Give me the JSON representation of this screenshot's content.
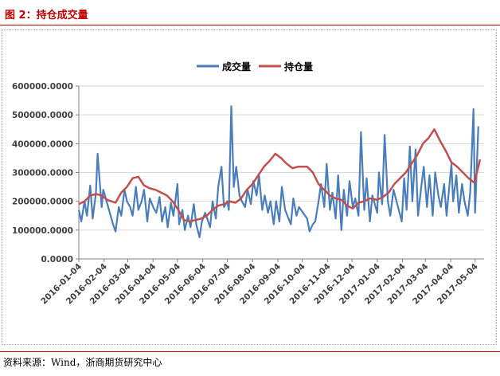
{
  "figure": {
    "title": "图 2：持仓成交量",
    "source": "资料来源：Wind，浙商期货研究中心"
  },
  "chart_data": {
    "type": "line",
    "x_tick_labels": [
      "2016-01-04",
      "2016-02-04",
      "2016-03-04",
      "2016-04-04",
      "2016-05-04",
      "2016-06-04",
      "2016-07-04",
      "2016-08-04",
      "2016-09-04",
      "2016-10-04",
      "2016-11-04",
      "2016-12-04",
      "2017-01-04",
      "2017-02-04",
      "2017-03-04",
      "2017-04-04",
      "2017-05-04"
    ],
    "y_tick_labels": [
      "0.0000",
      "100000.0000",
      "200000.0000",
      "300000.0000",
      "400000.0000",
      "500000.0000",
      "600000.0000"
    ],
    "ylim": [
      0,
      600000
    ],
    "xlim": [
      "2016-01-04",
      "2017-05-15"
    ],
    "grid": true,
    "legend_position": "top-center",
    "series": [
      {
        "name": "成交量",
        "color": "#4a7ebb",
        "points": [
          [
            "2016-01-04",
            170000
          ],
          [
            "2016-01-07",
            130000
          ],
          [
            "2016-01-11",
            200000
          ],
          [
            "2016-01-14",
            150000
          ],
          [
            "2016-01-18",
            255000
          ],
          [
            "2016-01-21",
            140000
          ],
          [
            "2016-01-25",
            230000
          ],
          [
            "2016-01-27",
            365000
          ],
          [
            "2016-02-01",
            180000
          ],
          [
            "2016-02-03",
            240000
          ],
          [
            "2016-02-15",
            120000
          ],
          [
            "2016-02-18",
            95000
          ],
          [
            "2016-02-22",
            180000
          ],
          [
            "2016-02-25",
            150000
          ],
          [
            "2016-02-29",
            240000
          ],
          [
            "2016-03-03",
            200000
          ],
          [
            "2016-03-07",
            180000
          ],
          [
            "2016-03-10",
            150000
          ],
          [
            "2016-03-14",
            250000
          ],
          [
            "2016-03-17",
            170000
          ],
          [
            "2016-03-21",
            200000
          ],
          [
            "2016-03-24",
            240000
          ],
          [
            "2016-03-28",
            130000
          ],
          [
            "2016-03-31",
            210000
          ],
          [
            "2016-04-05",
            175000
          ],
          [
            "2016-04-08",
            160000
          ],
          [
            "2016-04-12",
            215000
          ],
          [
            "2016-04-15",
            130000
          ],
          [
            "2016-04-19",
            180000
          ],
          [
            "2016-04-22",
            110000
          ],
          [
            "2016-04-26",
            195000
          ],
          [
            "2016-04-29",
            150000
          ],
          [
            "2016-05-04",
            260000
          ],
          [
            "2016-05-06",
            120000
          ],
          [
            "2016-05-10",
            170000
          ],
          [
            "2016-05-13",
            100000
          ],
          [
            "2016-05-17",
            150000
          ],
          [
            "2016-05-20",
            110000
          ],
          [
            "2016-05-24",
            190000
          ],
          [
            "2016-05-27",
            120000
          ],
          [
            "2016-05-31",
            75000
          ],
          [
            "2016-06-03",
            130000
          ],
          [
            "2016-06-07",
            160000
          ],
          [
            "2016-06-13",
            110000
          ],
          [
            "2016-06-16",
            200000
          ],
          [
            "2016-06-20",
            140000
          ],
          [
            "2016-06-23",
            250000
          ],
          [
            "2016-06-27",
            320000
          ],
          [
            "2016-06-30",
            180000
          ],
          [
            "2016-07-04",
            200000
          ],
          [
            "2016-07-06",
            170000
          ],
          [
            "2016-07-09",
            530000
          ],
          [
            "2016-07-12",
            250000
          ],
          [
            "2016-07-15",
            320000
          ],
          [
            "2016-07-19",
            220000
          ],
          [
            "2016-07-22",
            200000
          ],
          [
            "2016-07-26",
            180000
          ],
          [
            "2016-07-29",
            240000
          ],
          [
            "2016-08-02",
            190000
          ],
          [
            "2016-08-05",
            270000
          ],
          [
            "2016-08-09",
            220000
          ],
          [
            "2016-08-12",
            290000
          ],
          [
            "2016-08-16",
            170000
          ],
          [
            "2016-08-19",
            220000
          ],
          [
            "2016-08-23",
            160000
          ],
          [
            "2016-08-26",
            200000
          ],
          [
            "2016-08-30",
            120000
          ],
          [
            "2016-09-02",
            200000
          ],
          [
            "2016-09-06",
            130000
          ],
          [
            "2016-09-09",
            250000
          ],
          [
            "2016-09-13",
            170000
          ],
          [
            "2016-09-20",
            120000
          ],
          [
            "2016-09-23",
            210000
          ],
          [
            "2016-09-27",
            150000
          ],
          [
            "2016-09-30",
            180000
          ],
          [
            "2016-10-10",
            140000
          ],
          [
            "2016-10-13",
            95000
          ],
          [
            "2016-10-17",
            120000
          ],
          [
            "2016-10-20",
            130000
          ],
          [
            "2016-10-24",
            200000
          ],
          [
            "2016-10-27",
            260000
          ],
          [
            "2016-10-31",
            180000
          ],
          [
            "2016-11-03",
            330000
          ],
          [
            "2016-11-07",
            170000
          ],
          [
            "2016-11-10",
            230000
          ],
          [
            "2016-11-14",
            140000
          ],
          [
            "2016-11-17",
            290000
          ],
          [
            "2016-11-21",
            100000
          ],
          [
            "2016-11-24",
            240000
          ],
          [
            "2016-11-28",
            150000
          ],
          [
            "2016-12-01",
            270000
          ],
          [
            "2016-12-05",
            180000
          ],
          [
            "2016-12-08",
            210000
          ],
          [
            "2016-12-12",
            150000
          ],
          [
            "2016-12-15",
            440000
          ],
          [
            "2016-12-19",
            170000
          ],
          [
            "2016-12-22",
            280000
          ],
          [
            "2016-12-26",
            130000
          ],
          [
            "2016-12-29",
            220000
          ],
          [
            "2017-01-04",
            160000
          ],
          [
            "2017-01-06",
            300000
          ],
          [
            "2017-01-10",
            190000
          ],
          [
            "2017-01-13",
            430000
          ],
          [
            "2017-01-17",
            200000
          ],
          [
            "2017-01-20",
            150000
          ],
          [
            "2017-01-24",
            240000
          ],
          [
            "2017-02-03",
            130000
          ],
          [
            "2017-02-06",
            280000
          ],
          [
            "2017-02-09",
            170000
          ],
          [
            "2017-02-13",
            390000
          ],
          [
            "2017-02-16",
            200000
          ],
          [
            "2017-02-20",
            380000
          ],
          [
            "2017-02-23",
            150000
          ],
          [
            "2017-02-27",
            250000
          ],
          [
            "2017-03-02",
            320000
          ],
          [
            "2017-03-06",
            180000
          ],
          [
            "2017-03-09",
            290000
          ],
          [
            "2017-03-13",
            150000
          ],
          [
            "2017-03-16",
            300000
          ],
          [
            "2017-03-20",
            220000
          ],
          [
            "2017-03-23",
            180000
          ],
          [
            "2017-03-27",
            260000
          ],
          [
            "2017-03-30",
            150000
          ],
          [
            "2017-04-05",
            330000
          ],
          [
            "2017-04-07",
            200000
          ],
          [
            "2017-04-11",
            290000
          ],
          [
            "2017-04-14",
            160000
          ],
          [
            "2017-04-18",
            260000
          ],
          [
            "2017-04-21",
            200000
          ],
          [
            "2017-04-25",
            150000
          ],
          [
            "2017-04-28",
            230000
          ],
          [
            "2017-05-02",
            520000
          ],
          [
            "2017-05-04",
            160000
          ],
          [
            "2017-05-08",
            460000
          ]
        ]
      },
      {
        "name": "持仓量",
        "color": "#c0504d",
        "points": [
          [
            "2016-01-04",
            190000
          ],
          [
            "2016-01-11",
            200000
          ],
          [
            "2016-01-18",
            220000
          ],
          [
            "2016-01-25",
            225000
          ],
          [
            "2016-02-01",
            220000
          ],
          [
            "2016-02-08",
            205000
          ],
          [
            "2016-02-18",
            195000
          ],
          [
            "2016-02-25",
            230000
          ],
          [
            "2016-03-03",
            250000
          ],
          [
            "2016-03-10",
            280000
          ],
          [
            "2016-03-17",
            285000
          ],
          [
            "2016-03-24",
            255000
          ],
          [
            "2016-03-31",
            245000
          ],
          [
            "2016-04-07",
            240000
          ],
          [
            "2016-04-14",
            230000
          ],
          [
            "2016-04-21",
            220000
          ],
          [
            "2016-04-28",
            200000
          ],
          [
            "2016-05-05",
            170000
          ],
          [
            "2016-05-12",
            135000
          ],
          [
            "2016-05-19",
            130000
          ],
          [
            "2016-05-26",
            135000
          ],
          [
            "2016-06-02",
            140000
          ],
          [
            "2016-06-09",
            150000
          ],
          [
            "2016-06-16",
            170000
          ],
          [
            "2016-06-23",
            185000
          ],
          [
            "2016-06-30",
            190000
          ],
          [
            "2016-07-07",
            200000
          ],
          [
            "2016-07-14",
            195000
          ],
          [
            "2016-07-21",
            210000
          ],
          [
            "2016-07-28",
            240000
          ],
          [
            "2016-08-04",
            260000
          ],
          [
            "2016-08-11",
            290000
          ],
          [
            "2016-08-18",
            320000
          ],
          [
            "2016-08-25",
            340000
          ],
          [
            "2016-09-01",
            365000
          ],
          [
            "2016-09-08",
            350000
          ],
          [
            "2016-09-15",
            330000
          ],
          [
            "2016-09-22",
            315000
          ],
          [
            "2016-09-29",
            320000
          ],
          [
            "2016-10-10",
            320000
          ],
          [
            "2016-10-17",
            300000
          ],
          [
            "2016-10-24",
            260000
          ],
          [
            "2016-10-31",
            240000
          ],
          [
            "2016-11-07",
            220000
          ],
          [
            "2016-11-14",
            210000
          ],
          [
            "2016-11-21",
            205000
          ],
          [
            "2016-11-28",
            185000
          ],
          [
            "2016-12-05",
            175000
          ],
          [
            "2016-12-12",
            195000
          ],
          [
            "2016-12-19",
            200000
          ],
          [
            "2016-12-26",
            210000
          ],
          [
            "2017-01-04",
            205000
          ],
          [
            "2017-01-11",
            215000
          ],
          [
            "2017-01-18",
            230000
          ],
          [
            "2017-01-25",
            260000
          ],
          [
            "2017-02-08",
            300000
          ],
          [
            "2017-02-15",
            330000
          ],
          [
            "2017-02-22",
            360000
          ],
          [
            "2017-03-01",
            400000
          ],
          [
            "2017-03-08",
            420000
          ],
          [
            "2017-03-15",
            450000
          ],
          [
            "2017-03-22",
            410000
          ],
          [
            "2017-03-29",
            375000
          ],
          [
            "2017-04-05",
            335000
          ],
          [
            "2017-04-12",
            320000
          ],
          [
            "2017-04-19",
            300000
          ],
          [
            "2017-04-26",
            280000
          ],
          [
            "2017-05-03",
            265000
          ],
          [
            "2017-05-08",
            320000
          ],
          [
            "2017-05-10",
            345000
          ]
        ]
      }
    ]
  }
}
